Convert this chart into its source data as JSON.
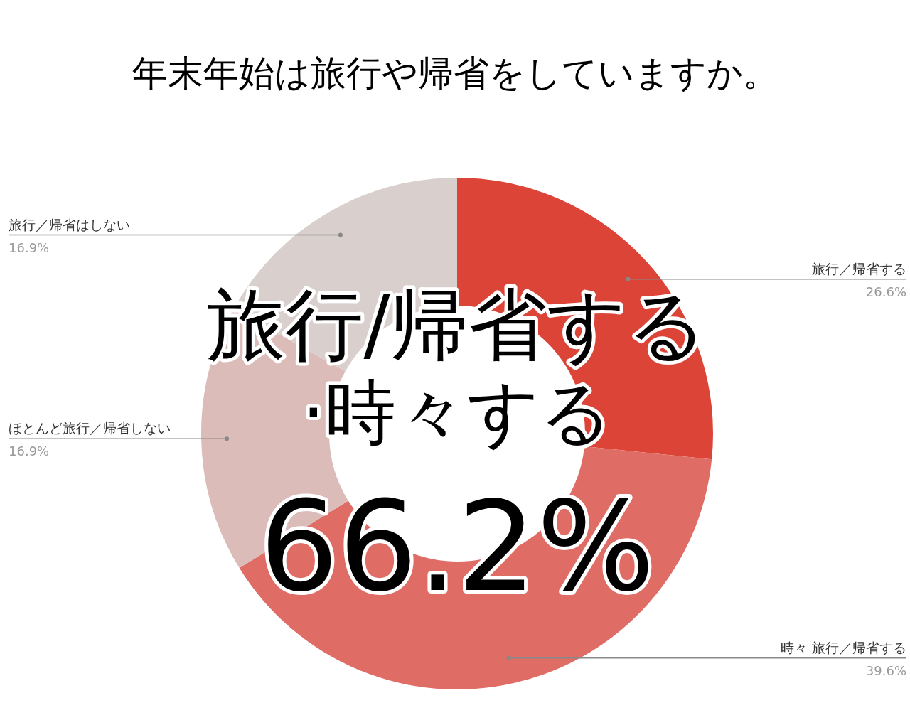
{
  "chart_data": {
    "type": "donut",
    "title": "年末年始は旅行や帰省をしていますか。",
    "categories": [
      "旅行／帰省する",
      "時々 旅行／帰省する",
      "ほとんど旅行／帰省しない",
      "旅行／帰省はしない"
    ],
    "values": [
      26.6,
      39.6,
      16.9,
      16.9
    ],
    "colors": [
      "#db4437",
      "#df6d66",
      "#dbbcb9",
      "#d9d0ce"
    ],
    "value_labels": [
      "26.6%",
      "39.6%",
      "16.9%",
      "16.9%"
    ],
    "annotations": [
      "旅行/帰省する",
      "·時々する",
      "66.2%"
    ],
    "legend": false
  }
}
